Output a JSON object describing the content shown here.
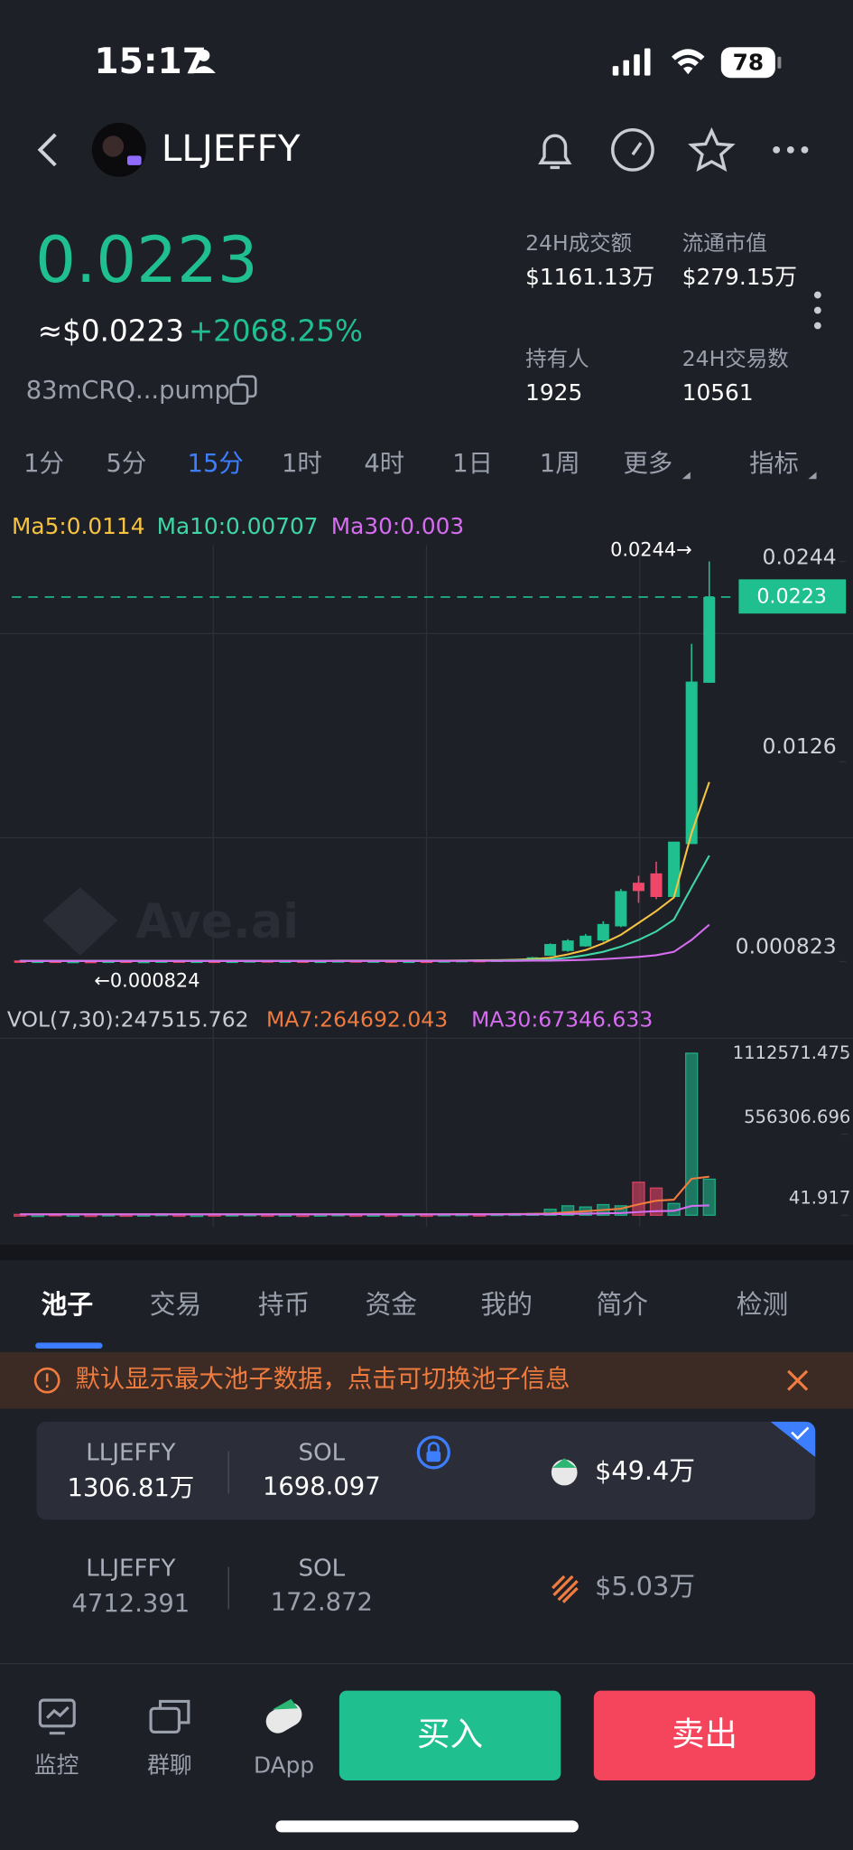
{
  "status_bar": {
    "time": "15:17",
    "battery": "78"
  },
  "header": {
    "title": "LLJEFFY"
  },
  "price": {
    "value": "0.0223",
    "usd": "≈$0.0223",
    "change": "+2068.25%",
    "address": "83mCRQ...pump"
  },
  "stats": [
    {
      "label": "24H成交额",
      "value": "$1161.13万"
    },
    {
      "label": "流通市值",
      "value": "$279.15万"
    },
    {
      "label": "持有人",
      "value": "1925"
    },
    {
      "label": "24H交易数",
      "value": "10561"
    }
  ],
  "timeframes": {
    "items": [
      "1分",
      "5分",
      "15分",
      "1时",
      "4时",
      "1日",
      "1周",
      "更多",
      "指标"
    ],
    "active": 2
  },
  "kline": {
    "type": "candlestick",
    "legend": [
      {
        "text": "Ma5:0.0114",
        "color": "#f5c242"
      },
      {
        "text": "Ma10:0.00707",
        "color": "#3fd6a5"
      },
      {
        "text": "Ma30:0.003",
        "color": "#d66df0"
      }
    ],
    "up_color": "#1fbf8f",
    "down_color": "#f0466a",
    "ylim": [
      0.00013,
      0.0255
    ],
    "yticks": [
      0.0244,
      0.0126,
      0.000823
    ],
    "current_price": 0.0223,
    "max_label": "0.0244→",
    "min_label": "←0.000824",
    "watermark": "Ave.ai",
    "candles": [
      [
        0.00089,
        0.00091,
        0.00083,
        0.00085
      ],
      [
        0.00085,
        0.0009,
        0.00084,
        0.00088
      ],
      [
        0.00088,
        0.00089,
        0.000824,
        0.00084
      ],
      [
        0.00084,
        0.00089,
        0.00083,
        0.00087
      ],
      [
        0.00087,
        0.00088,
        0.00083,
        0.00085
      ],
      [
        0.00085,
        0.00089,
        0.00084,
        0.00088
      ],
      [
        0.00088,
        0.0009,
        0.00084,
        0.00085
      ],
      [
        0.00085,
        0.00089,
        0.00084,
        0.00087
      ],
      [
        0.00087,
        0.0009,
        0.00085,
        0.00089
      ],
      [
        0.00089,
        0.0009,
        0.00085,
        0.00086
      ],
      [
        0.00086,
        0.00089,
        0.00085,
        0.00088
      ],
      [
        0.00088,
        0.00089,
        0.00084,
        0.00085
      ],
      [
        0.00085,
        0.0009,
        0.00084,
        0.00088
      ],
      [
        0.00088,
        0.00091,
        0.00086,
        0.0009
      ],
      [
        0.0009,
        0.00091,
        0.00085,
        0.00086
      ],
      [
        0.00086,
        0.0009,
        0.00085,
        0.00089
      ],
      [
        0.00089,
        0.0009,
        0.00084,
        0.00085
      ],
      [
        0.00085,
        0.00089,
        0.00084,
        0.00088
      ],
      [
        0.00088,
        0.00091,
        0.00087,
        0.0009
      ],
      [
        0.0009,
        0.00091,
        0.00085,
        0.00086
      ],
      [
        0.00086,
        0.0009,
        0.00085,
        0.00089
      ],
      [
        0.00089,
        0.0009,
        0.00084,
        0.00085
      ],
      [
        0.00085,
        0.00089,
        0.00084,
        0.00088
      ],
      [
        0.00088,
        0.0009,
        0.00085,
        0.00086
      ],
      [
        0.00086,
        0.00091,
        0.00085,
        0.0009
      ],
      [
        0.0009,
        0.00093,
        0.00088,
        0.00092
      ],
      [
        0.00092,
        0.00094,
        0.00088,
        0.00089
      ],
      [
        0.00089,
        0.00095,
        0.00088,
        0.00094
      ],
      [
        0.00094,
        0.00098,
        0.00092,
        0.00097
      ],
      [
        0.00097,
        0.0011,
        0.00095,
        0.00108
      ],
      [
        0.00117,
        0.0019,
        0.00115,
        0.00186
      ],
      [
        0.00145,
        0.00215,
        0.0014,
        0.00207
      ],
      [
        0.00172,
        0.00245,
        0.0017,
        0.00235
      ],
      [
        0.00207,
        0.0032,
        0.002,
        0.00304
      ],
      [
        0.0029,
        0.0051,
        0.00285,
        0.00498
      ],
      [
        0.00547,
        0.00588,
        0.00429,
        0.00498
      ],
      [
        0.00602,
        0.00671,
        0.0045,
        0.00463
      ],
      [
        0.00463,
        0.00789,
        0.00455,
        0.00789
      ],
      [
        0.00775,
        0.01954,
        0.00775,
        0.01732
      ],
      [
        0.01725,
        0.0244,
        0.01725,
        0.0223
      ]
    ],
    "ma": [
      {
        "color": "#f5c242",
        "values": [
          0.00087,
          0.00087,
          0.00087,
          0.00087,
          0.00087,
          0.00087,
          0.00087,
          0.00087,
          0.00087,
          0.00087,
          0.00087,
          0.00087,
          0.00087,
          0.00087,
          0.00087,
          0.00087,
          0.00087,
          0.00087,
          0.00088,
          0.00088,
          0.00088,
          0.00088,
          0.00088,
          0.00088,
          0.00088,
          0.00089,
          0.0009,
          0.00091,
          0.00093,
          0.00097,
          0.00105,
          0.00125,
          0.0015,
          0.0019,
          0.0024,
          0.0031,
          0.0038,
          0.0046,
          0.0084,
          0.0114
        ]
      },
      {
        "color": "#3fd6a5",
        "values": [
          0.00087,
          0.00087,
          0.00087,
          0.00087,
          0.00087,
          0.00087,
          0.00087,
          0.00087,
          0.00087,
          0.00087,
          0.00087,
          0.00087,
          0.00087,
          0.00087,
          0.00087,
          0.00087,
          0.00087,
          0.00087,
          0.00087,
          0.00087,
          0.00087,
          0.00087,
          0.00087,
          0.00087,
          0.00087,
          0.00088,
          0.00088,
          0.00089,
          0.0009,
          0.00092,
          0.00095,
          0.00105,
          0.0012,
          0.0014,
          0.0017,
          0.0021,
          0.0026,
          0.0033,
          0.0052,
          0.00707
        ]
      },
      {
        "color": "#d66df0",
        "values": [
          0.00086,
          0.00086,
          0.00086,
          0.00086,
          0.00086,
          0.00086,
          0.00086,
          0.00086,
          0.00086,
          0.00086,
          0.00086,
          0.00086,
          0.00086,
          0.00086,
          0.00086,
          0.00086,
          0.00086,
          0.00086,
          0.00086,
          0.00086,
          0.00086,
          0.00086,
          0.00086,
          0.00086,
          0.00087,
          0.00087,
          0.00087,
          0.00087,
          0.00087,
          0.00088,
          0.00088,
          0.0009,
          0.00093,
          0.00097,
          0.00103,
          0.0011,
          0.0012,
          0.0014,
          0.0021,
          0.003
        ]
      }
    ]
  },
  "volume": {
    "legend": [
      {
        "text": "VOL(7,30):247515.762",
        "color": "#c8ccd4"
      },
      {
        "text": "MA7:264692.043",
        "color": "#f07b3f"
      },
      {
        "text": "MA30:67346.633",
        "color": "#d66df0"
      }
    ],
    "ylim": [
      0,
      1150000
    ],
    "yticks": [
      1112571.475,
      556306.696,
      41.917
    ],
    "values": [
      6000,
      4000,
      8000,
      5000,
      4000,
      7000,
      5000,
      6000,
      9000,
      5000,
      4000,
      6000,
      7000,
      8000,
      5000,
      6000,
      4000,
      6000,
      8000,
      5000,
      6000,
      5000,
      7000,
      5000,
      8000,
      9000,
      6000,
      10000,
      11000,
      12000,
      41000,
      65000,
      57000,
      73000,
      65000,
      227000,
      187000,
      81000,
      1112571.475,
      247515.762
    ],
    "ma": [
      {
        "color": "#f07b3f",
        "values": [
          6000,
          6000,
          6000,
          6000,
          6000,
          6000,
          6000,
          6000,
          6000,
          6000,
          6000,
          6000,
          6000,
          6000,
          6000,
          6000,
          6000,
          6000,
          6000,
          6000,
          6000,
          6000,
          6000,
          6000,
          6000,
          7000,
          7000,
          7000,
          8000,
          9000,
          12000,
          20000,
          28000,
          36000,
          45000,
          75000,
          100000,
          107000,
          250000,
          264692.043
        ]
      },
      {
        "color": "#d66df0",
        "values": [
          6000,
          6000,
          6000,
          6000,
          6000,
          6000,
          6000,
          6000,
          6000,
          6000,
          6000,
          6000,
          6000,
          6000,
          6000,
          6000,
          6000,
          6000,
          6000,
          6000,
          6000,
          6000,
          6000,
          6000,
          6000,
          6000,
          6000,
          6000,
          6000,
          6000,
          7000,
          9000,
          11000,
          13000,
          15000,
          22000,
          28000,
          30000,
          64000,
          67346.633
        ]
      }
    ]
  },
  "tabs": {
    "items": [
      "池子",
      "交易",
      "持币",
      "资金",
      "我的",
      "简介",
      "检测"
    ],
    "active": 0
  },
  "notice": "默认显示最大池子数据，点击可切换池子信息",
  "pools": [
    {
      "token": "LLJEFFY",
      "token_amount": "1306.81万",
      "quote": "SOL",
      "quote_amount": "1698.097",
      "value": "$49.4万"
    },
    {
      "token": "LLJEFFY",
      "token_amount": "4712.391",
      "quote": "SOL",
      "quote_amount": "172.872",
      "value": "$5.03万"
    }
  ],
  "nav": {
    "items": [
      "监控",
      "群聊",
      "DApp"
    ],
    "buy": "买入",
    "sell": "卖出"
  }
}
